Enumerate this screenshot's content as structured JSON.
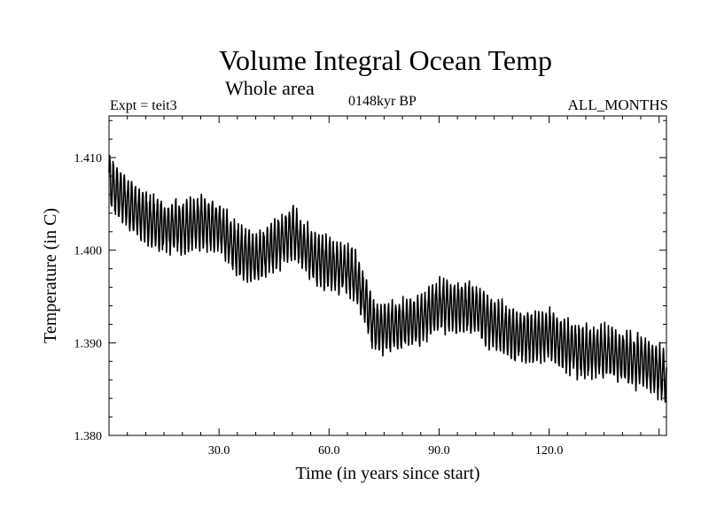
{
  "header": {
    "title": "Volume Integral Ocean Temp",
    "subtitle": "Whole area",
    "experiment": "Expt = teit3",
    "period": "0148kyr BP",
    "months": "ALL_MONTHS"
  },
  "chart_data": {
    "type": "line",
    "title": "Volume Integral Ocean Temp",
    "subtitle": "Whole area",
    "xlabel": "Time (in years since start)",
    "ylabel": "Temperature (in C)",
    "xlim": [
      0,
      152
    ],
    "ylim": [
      1.38,
      1.4145
    ],
    "xticks": [
      30,
      60,
      90,
      120
    ],
    "xtick_labels": [
      "30.0",
      "60.0",
      "90.0",
      "120.0"
    ],
    "yticks": [
      1.38,
      1.39,
      1.4,
      1.41
    ],
    "ytick_labels": [
      "1.380",
      "1.390",
      "1.400",
      "1.410"
    ],
    "series": [
      {
        "name": "Volume integral ocean temperature",
        "seasonal_amplitude": 0.0025,
        "trend_x": [
          0,
          5,
          10,
          15,
          20,
          25,
          30,
          35,
          40,
          45,
          50,
          53,
          55,
          60,
          65,
          68,
          72,
          75,
          80,
          85,
          90,
          95,
          100,
          105,
          110,
          115,
          120,
          125,
          130,
          135,
          140,
          145,
          150,
          152
        ],
        "trend_y": [
          1.4075,
          1.405,
          1.4035,
          1.4025,
          1.4025,
          1.403,
          1.4025,
          1.4,
          1.399,
          1.4005,
          1.402,
          1.4005,
          1.3995,
          1.3985,
          1.398,
          1.3965,
          1.392,
          1.3915,
          1.392,
          1.3925,
          1.394,
          1.394,
          1.3935,
          1.392,
          1.391,
          1.3905,
          1.391,
          1.3895,
          1.389,
          1.389,
          1.3885,
          1.388,
          1.387,
          1.386
        ]
      }
    ]
  }
}
